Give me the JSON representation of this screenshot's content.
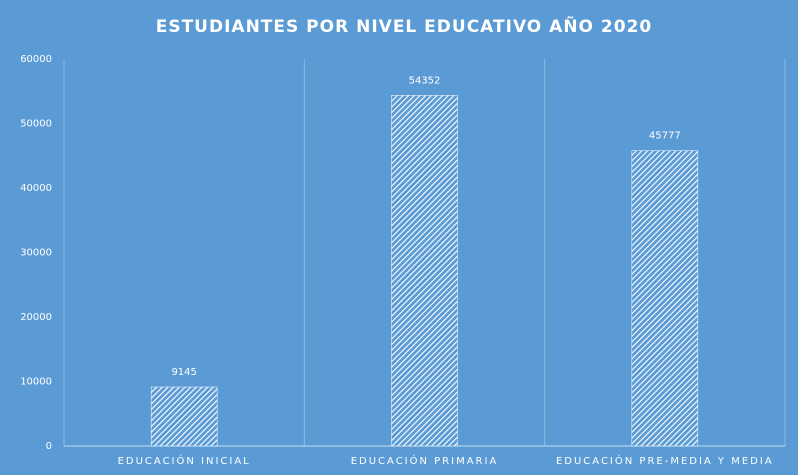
{
  "chart_data": {
    "type": "bar",
    "title": "ESTUDIANTES POR NIVEL EDUCATIVO AÑO 2020",
    "categories": [
      "EDUCACIÓN INICIAL",
      "EDUCACIÓN PRIMARIA",
      "EDUCACIÓN PRE-MEDIA Y MEDIA"
    ],
    "values": [
      9145,
      54352,
      45777
    ],
    "color": "#ffffff",
    "ylim": [
      0,
      60000
    ],
    "yticks": [
      0,
      10000,
      20000,
      30000,
      40000,
      50000,
      60000
    ],
    "grid": false
  }
}
